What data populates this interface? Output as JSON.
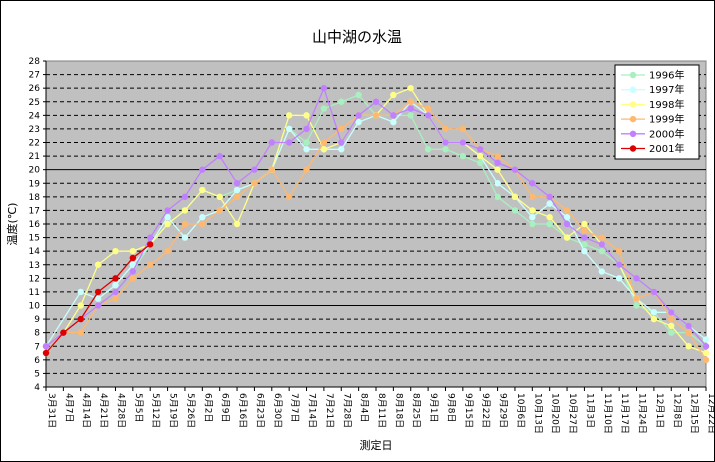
{
  "chart_data": {
    "type": "line",
    "title": "山中湖の水温",
    "xlabel": "測定日",
    "ylabel": "温度(℃)",
    "ylim": [
      4,
      28
    ],
    "grid": true,
    "legend_position": "top-right",
    "categories": [
      "3月31日",
      "4月7日",
      "4月14日",
      "4月21日",
      "4月28日",
      "5月5日",
      "5月12日",
      "5月19日",
      "5月26日",
      "6月2日",
      "6月9日",
      "6月16日",
      "6月23日",
      "6月30日",
      "7月7日",
      "7月14日",
      "7月21日",
      "7月28日",
      "8月4日",
      "8月11日",
      "8月18日",
      "8月25日",
      "9月1日",
      "9月8日",
      "9月15日",
      "9月22日",
      "9月29日",
      "10月6日",
      "10月13日",
      "10月20日",
      "10月27日",
      "11月3日",
      "11月10日",
      "11月17日",
      "11月24日",
      "12月1日",
      "12月8日",
      "12月15日",
      "12月22日"
    ],
    "series": [
      {
        "name": "1996年",
        "color": "#a8f0c0",
        "values": [
          [
            1,
            7.0
          ],
          [
            2,
            8.0
          ],
          [
            3,
            9.0
          ],
          [
            4,
            10.0
          ],
          [
            5,
            11.0
          ],
          [
            6,
            12.5
          ],
          [
            7,
            14.5
          ],
          [
            8,
            16.0
          ],
          [
            9,
            17.0
          ],
          [
            10,
            18.5
          ],
          [
            11,
            18.0
          ],
          [
            12,
            18.5
          ],
          [
            13,
            19.0
          ],
          [
            14,
            20.0
          ],
          [
            15,
            23.0
          ],
          [
            16,
            22.0
          ],
          [
            17,
            24.5
          ],
          [
            18,
            25.0
          ],
          [
            19,
            25.5
          ],
          [
            20,
            24.0
          ],
          [
            21,
            24.0
          ],
          [
            22,
            24.0
          ],
          [
            23,
            21.5
          ],
          [
            24,
            21.5
          ],
          [
            25,
            21.0
          ],
          [
            26,
            20.5
          ],
          [
            27,
            18.0
          ],
          [
            28,
            17.0
          ],
          [
            29,
            16.0
          ],
          [
            30,
            16.0
          ],
          [
            31,
            15.0
          ],
          [
            32,
            14.5
          ],
          [
            33,
            14.0
          ],
          [
            34,
            13.0
          ],
          [
            35,
            10.0
          ],
          [
            36,
            9.5
          ],
          [
            37,
            8.0
          ],
          [
            38,
            8.0
          ],
          [
            39,
            7.0
          ]
        ]
      },
      {
        "name": "1997年",
        "color": "#c8ffff",
        "values": [
          [
            1,
            7.0
          ],
          [
            3,
            11.0
          ],
          [
            4,
            10.5
          ],
          [
            5,
            11.5
          ],
          [
            6,
            13.0
          ],
          [
            7,
            14.5
          ],
          [
            8,
            16.5
          ],
          [
            9,
            15.0
          ],
          [
            10,
            16.5
          ],
          [
            11,
            17.0
          ],
          [
            12,
            18.5
          ],
          [
            13,
            19.0
          ],
          [
            14,
            20.0
          ],
          [
            15,
            23.0
          ],
          [
            16,
            21.5
          ],
          [
            17,
            21.5
          ],
          [
            18,
            21.5
          ],
          [
            19,
            23.5
          ],
          [
            20,
            24.0
          ],
          [
            21,
            23.5
          ],
          [
            22,
            25.0
          ],
          [
            23,
            24.0
          ],
          [
            24,
            22.0
          ],
          [
            25,
            22.0
          ],
          [
            26,
            21.0
          ],
          [
            27,
            19.0
          ],
          [
            28,
            18.0
          ],
          [
            29,
            16.5
          ],
          [
            30,
            17.5
          ],
          [
            31,
            16.5
          ],
          [
            32,
            14.0
          ],
          [
            33,
            12.5
          ],
          [
            34,
            12.0
          ],
          [
            35,
            10.5
          ],
          [
            36,
            9.5
          ],
          [
            37,
            9.5
          ],
          [
            38,
            8.5
          ],
          [
            39,
            7.5
          ]
        ]
      },
      {
        "name": "1998年",
        "color": "#ffff88",
        "values": [
          [
            1,
            6.5
          ],
          [
            2,
            8.0
          ],
          [
            3,
            10.0
          ],
          [
            4,
            13.0
          ],
          [
            5,
            14.0
          ],
          [
            6,
            14.0
          ],
          [
            7,
            14.5
          ],
          [
            8,
            16.0
          ],
          [
            9,
            17.0
          ],
          [
            10,
            18.5
          ],
          [
            11,
            18.0
          ],
          [
            12,
            16.0
          ],
          [
            13,
            19.0
          ],
          [
            14,
            20.0
          ],
          [
            15,
            24.0
          ],
          [
            16,
            24.0
          ],
          [
            17,
            21.5
          ],
          [
            18,
            22.0
          ],
          [
            19,
            24.0
          ],
          [
            20,
            24.0
          ],
          [
            21,
            25.5
          ],
          [
            22,
            26.0
          ],
          [
            23,
            24.0
          ],
          [
            24,
            22.0
          ],
          [
            25,
            22.0
          ],
          [
            26,
            21.0
          ],
          [
            27,
            20.0
          ],
          [
            28,
            18.0
          ],
          [
            29,
            17.0
          ],
          [
            30,
            16.5
          ],
          [
            31,
            15.0
          ],
          [
            32,
            16.0
          ],
          [
            33,
            14.5
          ],
          [
            34,
            13.0
          ],
          [
            35,
            10.5
          ],
          [
            36,
            9.0
          ],
          [
            37,
            8.5
          ],
          [
            38,
            7.0
          ],
          [
            39,
            6.5
          ]
        ]
      },
      {
        "name": "1999年",
        "color": "#ffb870",
        "values": [
          [
            1,
            7.0
          ],
          [
            2,
            8.0
          ],
          [
            3,
            8.0
          ],
          [
            4,
            10.0
          ],
          [
            5,
            10.5
          ],
          [
            6,
            12.0
          ],
          [
            7,
            13.0
          ],
          [
            8,
            14.0
          ],
          [
            9,
            16.0
          ],
          [
            10,
            16.0
          ],
          [
            11,
            17.0
          ],
          [
            12,
            18.0
          ],
          [
            13,
            19.0
          ],
          [
            14,
            20.0
          ],
          [
            15,
            18.0
          ],
          [
            16,
            20.0
          ],
          [
            17,
            22.0
          ],
          [
            18,
            23.0
          ],
          [
            19,
            24.0
          ],
          [
            20,
            24.0
          ],
          [
            21,
            24.0
          ],
          [
            22,
            25.0
          ],
          [
            23,
            24.5
          ],
          [
            24,
            23.0
          ],
          [
            25,
            23.0
          ],
          [
            26,
            21.5
          ],
          [
            27,
            21.0
          ],
          [
            28,
            20.0
          ],
          [
            29,
            18.0
          ],
          [
            30,
            18.0
          ],
          [
            31,
            17.0
          ],
          [
            32,
            15.5
          ],
          [
            33,
            15.0
          ],
          [
            34,
            14.0
          ],
          [
            35,
            10.5
          ],
          [
            36,
            11.0
          ],
          [
            37,
            9.0
          ],
          [
            38,
            8.0
          ],
          [
            39,
            6.0
          ]
        ]
      },
      {
        "name": "2000年",
        "color": "#c080ff",
        "values": [
          [
            1,
            7.0
          ],
          [
            2,
            8.0
          ],
          [
            3,
            9.0
          ],
          [
            4,
            10.0
          ],
          [
            5,
            11.0
          ],
          [
            6,
            12.5
          ],
          [
            7,
            15.0
          ],
          [
            8,
            17.0
          ],
          [
            9,
            18.0
          ],
          [
            10,
            20.0
          ],
          [
            11,
            21.0
          ],
          [
            12,
            19.0
          ],
          [
            13,
            20.0
          ],
          [
            14,
            22.0
          ],
          [
            15,
            22.0
          ],
          [
            16,
            23.0
          ],
          [
            17,
            26.0
          ],
          [
            18,
            22.0
          ],
          [
            19,
            24.0
          ],
          [
            20,
            25.0
          ],
          [
            21,
            24.0
          ],
          [
            22,
            24.5
          ],
          [
            23,
            24.0
          ],
          [
            24,
            22.0
          ],
          [
            25,
            22.0
          ],
          [
            26,
            21.5
          ],
          [
            27,
            20.5
          ],
          [
            28,
            20.0
          ],
          [
            29,
            19.0
          ],
          [
            30,
            18.0
          ],
          [
            31,
            16.0
          ],
          [
            32,
            15.0
          ],
          [
            33,
            14.5
          ],
          [
            34,
            13.0
          ],
          [
            35,
            12.0
          ],
          [
            36,
            11.0
          ],
          [
            37,
            9.5
          ],
          [
            38,
            8.5
          ],
          [
            39,
            7.0
          ]
        ]
      },
      {
        "name": "2001年",
        "color": "#dd0000",
        "values": [
          [
            1,
            6.5
          ],
          [
            2,
            8.0
          ],
          [
            3,
            9.0
          ],
          [
            4,
            11.0
          ],
          [
            5,
            12.0
          ],
          [
            6,
            13.5
          ],
          [
            7,
            14.5
          ]
        ]
      }
    ]
  }
}
